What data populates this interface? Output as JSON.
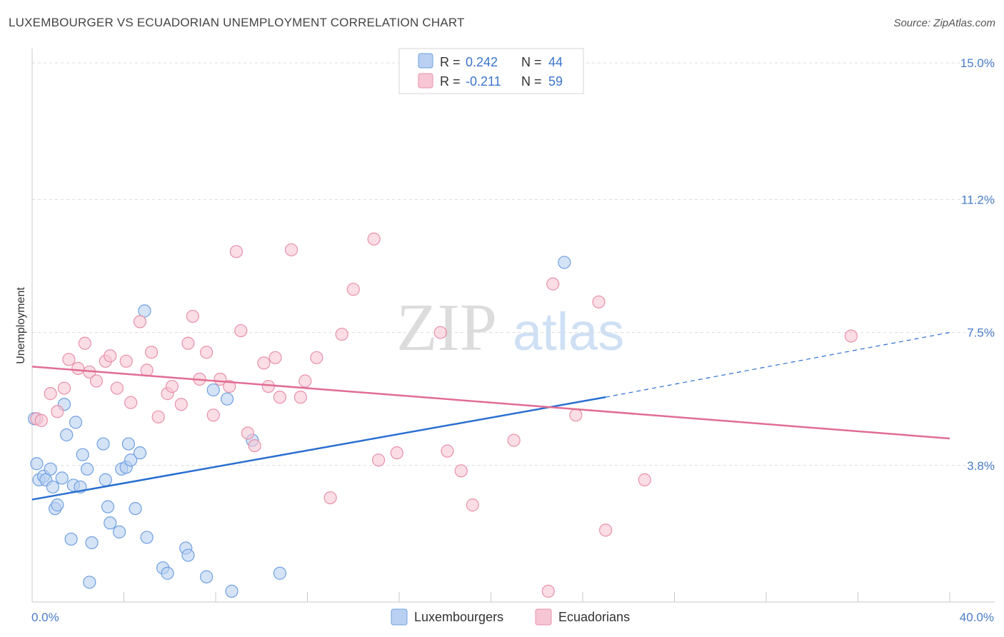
{
  "title": "LUXEMBOURGER VS ECUADORIAN UNEMPLOYMENT CORRELATION CHART",
  "source": "Source: ZipAtlas.com",
  "watermark": {
    "zip": "ZIP",
    "atlas": "atlas"
  },
  "chart_data": {
    "type": "scatter",
    "title": "LUXEMBOURGER VS ECUADORIAN UNEMPLOYMENT CORRELATION CHART",
    "xlabel": "",
    "ylabel": "Unemployment",
    "xlim": [
      0,
      40
    ],
    "ylim": [
      0,
      15.4
    ],
    "x_tick_labels": [
      "0.0%",
      "40.0%"
    ],
    "y_ticks": [
      3.8,
      7.5,
      11.2,
      15.0
    ],
    "y_tick_labels": [
      "3.8%",
      "7.5%",
      "11.2%",
      "15.0%"
    ],
    "grid": true,
    "legend": {
      "position": "top-center",
      "rows": [
        {
          "r_label": "R = ",
          "r_value": "0.242",
          "n_label": "N = ",
          "n_value": "44"
        },
        {
          "r_label": "R = ",
          "r_value": "-0.211",
          "n_label": "N = ",
          "n_value": "59"
        }
      ]
    },
    "bottom_legend": [
      "Luxembourgers",
      "Ecuadorians"
    ],
    "series": [
      {
        "name": "Luxembourgers",
        "color": "#6fa0e0",
        "fill": "#b9d0f2",
        "line_color": "#2a6fd0",
        "r": 0.242,
        "n": 44,
        "trend": {
          "x0": 0,
          "y0": 2.85,
          "x1": 25,
          "y1": 5.7,
          "dash_to_x": 40,
          "dash_to_y": 7.5
        },
        "points": [
          [
            0.1,
            5.1
          ],
          [
            0.2,
            3.85
          ],
          [
            0.3,
            3.4
          ],
          [
            0.5,
            3.5
          ],
          [
            0.6,
            3.4
          ],
          [
            0.8,
            3.7
          ],
          [
            0.9,
            3.2
          ],
          [
            1.0,
            2.6
          ],
          [
            1.1,
            2.7
          ],
          [
            1.3,
            3.45
          ],
          [
            1.4,
            5.5
          ],
          [
            1.5,
            4.65
          ],
          [
            1.7,
            1.75
          ],
          [
            1.8,
            3.25
          ],
          [
            1.9,
            5.0
          ],
          [
            2.1,
            3.2
          ],
          [
            2.2,
            4.1
          ],
          [
            2.4,
            3.7
          ],
          [
            2.5,
            0.55
          ],
          [
            2.6,
            1.65
          ],
          [
            3.1,
            4.4
          ],
          [
            3.2,
            3.4
          ],
          [
            3.3,
            2.65
          ],
          [
            3.4,
            2.2
          ],
          [
            3.8,
            1.95
          ],
          [
            3.9,
            3.7
          ],
          [
            4.1,
            3.75
          ],
          [
            4.2,
            4.4
          ],
          [
            4.3,
            3.95
          ],
          [
            4.5,
            2.6
          ],
          [
            4.7,
            4.15
          ],
          [
            4.9,
            8.1
          ],
          [
            5.0,
            1.8
          ],
          [
            5.7,
            0.95
          ],
          [
            5.9,
            0.8
          ],
          [
            6.7,
            1.5
          ],
          [
            6.8,
            1.3
          ],
          [
            7.6,
            0.7
          ],
          [
            7.9,
            5.9
          ],
          [
            8.5,
            5.65
          ],
          [
            8.7,
            0.3
          ],
          [
            9.6,
            4.5
          ],
          [
            10.8,
            0.8
          ],
          [
            23.2,
            9.45
          ]
        ]
      },
      {
        "name": "Ecuadorians",
        "color": "#e890aa",
        "fill": "#f6c6d4",
        "line_color": "#e06d95",
        "r": -0.211,
        "n": 59,
        "trend": {
          "x0": 0,
          "y0": 6.55,
          "x1": 40,
          "y1": 4.55
        },
        "points": [
          [
            0.2,
            5.1
          ],
          [
            0.4,
            5.05
          ],
          [
            0.8,
            5.8
          ],
          [
            1.1,
            5.3
          ],
          [
            1.4,
            5.95
          ],
          [
            1.6,
            6.75
          ],
          [
            2.0,
            6.5
          ],
          [
            2.3,
            7.2
          ],
          [
            2.5,
            6.4
          ],
          [
            2.8,
            6.15
          ],
          [
            3.2,
            6.7
          ],
          [
            3.4,
            6.85
          ],
          [
            3.7,
            5.95
          ],
          [
            4.1,
            6.7
          ],
          [
            4.3,
            5.55
          ],
          [
            4.7,
            7.8
          ],
          [
            5.0,
            6.45
          ],
          [
            5.2,
            6.95
          ],
          [
            5.5,
            5.15
          ],
          [
            5.9,
            5.8
          ],
          [
            6.1,
            6.0
          ],
          [
            6.5,
            5.5
          ],
          [
            6.8,
            7.2
          ],
          [
            7.0,
            7.95
          ],
          [
            7.3,
            6.2
          ],
          [
            7.6,
            6.95
          ],
          [
            7.9,
            5.2
          ],
          [
            8.2,
            6.2
          ],
          [
            8.6,
            6.0
          ],
          [
            8.9,
            9.75
          ],
          [
            9.1,
            7.55
          ],
          [
            9.4,
            4.7
          ],
          [
            9.7,
            4.35
          ],
          [
            10.1,
            6.65
          ],
          [
            10.3,
            6.0
          ],
          [
            10.6,
            6.8
          ],
          [
            10.8,
            5.7
          ],
          [
            11.3,
            9.8
          ],
          [
            11.7,
            5.7
          ],
          [
            11.9,
            6.15
          ],
          [
            12.4,
            6.8
          ],
          [
            13.0,
            2.9
          ],
          [
            13.5,
            7.45
          ],
          [
            14.0,
            8.7
          ],
          [
            14.9,
            10.1
          ],
          [
            15.1,
            3.95
          ],
          [
            15.9,
            4.15
          ],
          [
            17.8,
            7.5
          ],
          [
            18.1,
            4.2
          ],
          [
            18.7,
            3.65
          ],
          [
            19.2,
            2.7
          ],
          [
            21.0,
            4.5
          ],
          [
            22.5,
            0.3
          ],
          [
            22.7,
            8.85
          ],
          [
            23.7,
            5.2
          ],
          [
            24.7,
            8.35
          ],
          [
            25.0,
            2.0
          ],
          [
            26.7,
            3.4
          ],
          [
            35.7,
            7.4
          ]
        ]
      }
    ]
  }
}
